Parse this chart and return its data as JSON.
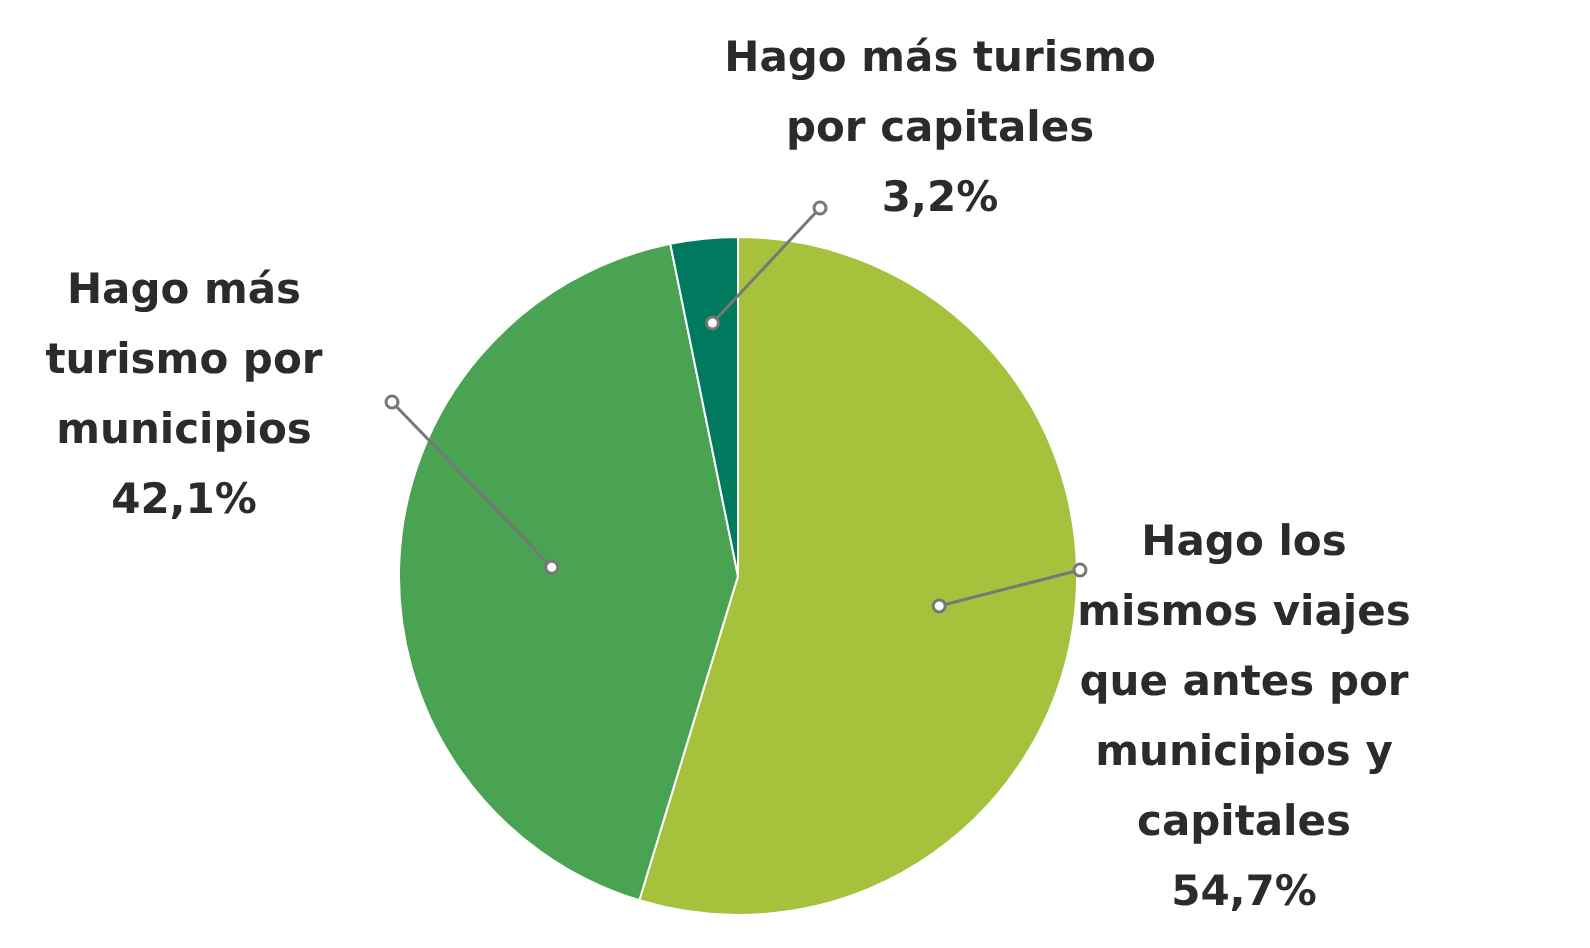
{
  "chart_data": {
    "type": "pie",
    "categories": [
      "Hago los mismos viajes que antes por municipios y capitales",
      "Hago más turismo por municipios",
      "Hago más turismo por capitales"
    ],
    "values": [
      54.7,
      42.1,
      3.2
    ],
    "colors": [
      "#a6c13c",
      "#4aa352",
      "#007a5e"
    ],
    "value_labels": [
      "54,7%",
      "42,1%",
      "3,2%"
    ],
    "legend": false
  }
}
